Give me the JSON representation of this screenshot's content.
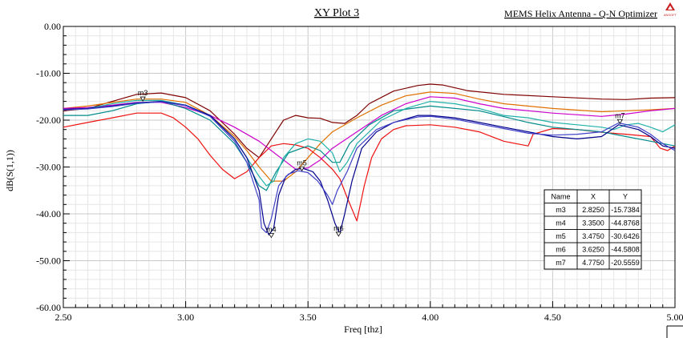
{
  "chart_data": {
    "type": "line",
    "title": "XY Plot 3",
    "subtitle": "MEMS Helix Antenna - Q-N Optimizer",
    "logo_text": "ANSOFT",
    "xlabel": "Freq [thz]",
    "ylabel": "dB(S(1,1))",
    "xlim": [
      2.5,
      5.0
    ],
    "ylim": [
      -60,
      0
    ],
    "x_ticks": [
      2.5,
      3.0,
      3.5,
      4.0,
      4.5,
      5.0
    ],
    "x_tick_labels": [
      "2.50",
      "3.00",
      "3.50",
      "4.00",
      "4.50",
      "5.00"
    ],
    "y_ticks": [
      0,
      -10,
      -20,
      -30,
      -40,
      -50,
      -60
    ],
    "y_tick_labels": [
      "0.00",
      "-10.00",
      "-20.00",
      "-30.00",
      "-40.00",
      "-50.00",
      "-60.00"
    ],
    "grid": true,
    "series": [
      {
        "color": "#7f0000",
        "points": [
          [
            2.5,
            -18
          ],
          [
            2.6,
            -17.5
          ],
          [
            2.7,
            -16
          ],
          [
            2.8,
            -14.5
          ],
          [
            2.9,
            -14.2
          ],
          [
            3.0,
            -15.2
          ],
          [
            3.1,
            -18
          ],
          [
            3.2,
            -23
          ],
          [
            3.25,
            -26
          ],
          [
            3.3,
            -28
          ],
          [
            3.35,
            -24
          ],
          [
            3.4,
            -20
          ],
          [
            3.45,
            -19
          ],
          [
            3.5,
            -19.5
          ],
          [
            3.55,
            -19.6
          ],
          [
            3.6,
            -20.5
          ],
          [
            3.65,
            -20.7
          ],
          [
            3.7,
            -19
          ],
          [
            3.75,
            -16.5
          ],
          [
            3.85,
            -13.8
          ],
          [
            3.95,
            -12.6
          ],
          [
            4.0,
            -12.3
          ],
          [
            4.05,
            -12.5
          ],
          [
            4.15,
            -13.7
          ],
          [
            4.3,
            -14.5
          ],
          [
            4.5,
            -15
          ],
          [
            4.7,
            -15.5
          ],
          [
            4.8,
            -15.6
          ],
          [
            4.9,
            -15.3
          ],
          [
            5.0,
            -15.2
          ]
        ]
      },
      {
        "color": "#e07000",
        "points": [
          [
            2.5,
            -17.5
          ],
          [
            2.6,
            -17
          ],
          [
            2.7,
            -16.2
          ],
          [
            2.8,
            -15.5
          ],
          [
            2.9,
            -15.5
          ],
          [
            3.0,
            -16.2
          ],
          [
            3.1,
            -19
          ],
          [
            3.2,
            -23.5
          ],
          [
            3.25,
            -26.5
          ],
          [
            3.3,
            -30
          ],
          [
            3.35,
            -33
          ],
          [
            3.4,
            -33
          ],
          [
            3.45,
            -31
          ],
          [
            3.5,
            -28
          ],
          [
            3.55,
            -25
          ],
          [
            3.6,
            -22.5
          ],
          [
            3.7,
            -19.5
          ],
          [
            3.8,
            -16.8
          ],
          [
            3.9,
            -14.8
          ],
          [
            4.0,
            -14
          ],
          [
            4.1,
            -14.3
          ],
          [
            4.2,
            -15.5
          ],
          [
            4.3,
            -16.5
          ],
          [
            4.5,
            -17.5
          ],
          [
            4.7,
            -18.2
          ],
          [
            4.8,
            -18
          ],
          [
            4.9,
            -17.8
          ],
          [
            5.0,
            -17.5
          ]
        ]
      },
      {
        "color": "#ee1111",
        "points": [
          [
            2.5,
            -21.5
          ],
          [
            2.6,
            -20.5
          ],
          [
            2.7,
            -19.5
          ],
          [
            2.8,
            -18.5
          ],
          [
            2.9,
            -18.5
          ],
          [
            2.95,
            -19.5
          ],
          [
            3.0,
            -21.5
          ],
          [
            3.05,
            -24
          ],
          [
            3.1,
            -27.5
          ],
          [
            3.15,
            -30.5
          ],
          [
            3.2,
            -32.5
          ],
          [
            3.25,
            -31
          ],
          [
            3.3,
            -28
          ],
          [
            3.35,
            -25.5
          ],
          [
            3.4,
            -25
          ],
          [
            3.45,
            -25.3
          ],
          [
            3.5,
            -26
          ],
          [
            3.55,
            -28
          ],
          [
            3.6,
            -30.5
          ],
          [
            3.63,
            -32.5
          ],
          [
            3.66,
            -36.5
          ],
          [
            3.7,
            -41.5
          ],
          [
            3.73,
            -34
          ],
          [
            3.76,
            -28
          ],
          [
            3.8,
            -24
          ],
          [
            3.85,
            -22
          ],
          [
            3.9,
            -21.2
          ],
          [
            4.0,
            -21
          ],
          [
            4.1,
            -21.5
          ],
          [
            4.2,
            -22.5
          ],
          [
            4.3,
            -24.5
          ],
          [
            4.35,
            -25
          ],
          [
            4.4,
            -25.5
          ],
          [
            4.42,
            -23
          ],
          [
            4.5,
            -21.8
          ],
          [
            4.6,
            -22
          ],
          [
            4.7,
            -22.6
          ],
          [
            4.8,
            -23
          ],
          [
            4.9,
            -23.5
          ],
          [
            4.94,
            -26
          ],
          [
            4.97,
            -26.5
          ],
          [
            5.0,
            -25.5
          ]
        ]
      },
      {
        "color": "#cc00cc",
        "points": [
          [
            2.5,
            -17.5
          ],
          [
            2.6,
            -17.3
          ],
          [
            2.7,
            -16.8
          ],
          [
            2.8,
            -16.2
          ],
          [
            2.9,
            -16.2
          ],
          [
            3.0,
            -17.3
          ],
          [
            3.1,
            -19
          ],
          [
            3.2,
            -21.5
          ],
          [
            3.3,
            -24.5
          ],
          [
            3.35,
            -26.5
          ],
          [
            3.4,
            -28.5
          ],
          [
            3.45,
            -30.5
          ],
          [
            3.5,
            -30.2
          ],
          [
            3.55,
            -28.5
          ],
          [
            3.6,
            -26
          ],
          [
            3.7,
            -22.5
          ],
          [
            3.8,
            -19
          ],
          [
            3.9,
            -16.5
          ],
          [
            4.0,
            -15
          ],
          [
            4.1,
            -15.3
          ],
          [
            4.2,
            -16.5
          ],
          [
            4.3,
            -17.5
          ],
          [
            4.5,
            -18.5
          ],
          [
            4.7,
            -19.2
          ],
          [
            4.8,
            -18.7
          ],
          [
            4.9,
            -18
          ],
          [
            5.0,
            -17.5
          ]
        ]
      },
      {
        "color": "#008b8b",
        "points": [
          [
            2.5,
            -19
          ],
          [
            2.6,
            -19
          ],
          [
            2.7,
            -18
          ],
          [
            2.8,
            -16.5
          ],
          [
            2.9,
            -16
          ],
          [
            3.0,
            -17.5
          ],
          [
            3.1,
            -20
          ],
          [
            3.2,
            -25
          ],
          [
            3.25,
            -29
          ],
          [
            3.3,
            -34
          ],
          [
            3.33,
            -35
          ],
          [
            3.37,
            -31
          ],
          [
            3.42,
            -27
          ],
          [
            3.5,
            -25.5
          ],
          [
            3.55,
            -26.5
          ],
          [
            3.6,
            -29
          ],
          [
            3.63,
            -29
          ],
          [
            3.67,
            -25
          ],
          [
            3.75,
            -21
          ],
          [
            3.85,
            -18
          ],
          [
            4.0,
            -17
          ],
          [
            4.2,
            -18
          ],
          [
            4.4,
            -20.5
          ],
          [
            4.5,
            -21.5
          ],
          [
            4.6,
            -22
          ],
          [
            4.7,
            -22.5
          ],
          [
            4.8,
            -23.5
          ],
          [
            4.9,
            -24.5
          ],
          [
            5.0,
            -25.5
          ]
        ]
      },
      {
        "color": "#20b2aa",
        "points": [
          [
            2.5,
            -17.8
          ],
          [
            2.6,
            -17.5
          ],
          [
            2.7,
            -16.5
          ],
          [
            2.8,
            -15.8
          ],
          [
            2.9,
            -15.8
          ],
          [
            3.0,
            -16.8
          ],
          [
            3.1,
            -19
          ],
          [
            3.2,
            -24
          ],
          [
            3.25,
            -28
          ],
          [
            3.3,
            -32
          ],
          [
            3.33,
            -34
          ],
          [
            3.36,
            -33
          ],
          [
            3.4,
            -28
          ],
          [
            3.45,
            -25
          ],
          [
            3.5,
            -24
          ],
          [
            3.55,
            -24.5
          ],
          [
            3.6,
            -27
          ],
          [
            3.63,
            -31
          ],
          [
            3.66,
            -29
          ],
          [
            3.7,
            -25
          ],
          [
            3.8,
            -20
          ],
          [
            3.9,
            -17.5
          ],
          [
            4.0,
            -16
          ],
          [
            4.1,
            -16.5
          ],
          [
            4.2,
            -17.5
          ],
          [
            4.3,
            -19
          ],
          [
            4.4,
            -19.5
          ],
          [
            4.5,
            -20.5
          ],
          [
            4.6,
            -21
          ],
          [
            4.7,
            -21.5
          ],
          [
            4.75,
            -22
          ],
          [
            4.8,
            -21
          ],
          [
            4.85,
            -20.7
          ],
          [
            4.9,
            -21.5
          ],
          [
            4.95,
            -22.5
          ],
          [
            5.0,
            -21
          ]
        ]
      },
      {
        "color": "#00008b",
        "points": [
          [
            2.5,
            -17.7
          ],
          [
            2.6,
            -17.5
          ],
          [
            2.7,
            -17
          ],
          [
            2.8,
            -16.3
          ],
          [
            2.9,
            -16
          ],
          [
            3.0,
            -16.8
          ],
          [
            3.1,
            -19
          ],
          [
            3.2,
            -24
          ],
          [
            3.25,
            -28
          ],
          [
            3.3,
            -35
          ],
          [
            3.32,
            -42
          ],
          [
            3.34,
            -44.5
          ],
          [
            3.36,
            -43
          ],
          [
            3.38,
            -36
          ],
          [
            3.41,
            -32
          ],
          [
            3.45,
            -30.5
          ],
          [
            3.48,
            -30.3
          ],
          [
            3.52,
            -31
          ],
          [
            3.55,
            -33
          ],
          [
            3.58,
            -37
          ],
          [
            3.61,
            -42
          ],
          [
            3.63,
            -44.2
          ],
          [
            3.65,
            -40
          ],
          [
            3.68,
            -33
          ],
          [
            3.72,
            -26
          ],
          [
            3.78,
            -22.5
          ],
          [
            3.85,
            -20.5
          ],
          [
            3.95,
            -19
          ],
          [
            4.0,
            -19
          ],
          [
            4.1,
            -19.5
          ],
          [
            4.2,
            -20.5
          ],
          [
            4.3,
            -21.5
          ],
          [
            4.4,
            -22.5
          ],
          [
            4.5,
            -23.5
          ],
          [
            4.6,
            -24
          ],
          [
            4.7,
            -23.5
          ],
          [
            4.77,
            -21
          ],
          [
            4.85,
            -22
          ],
          [
            4.9,
            -23.5
          ],
          [
            4.95,
            -25.5
          ],
          [
            5.0,
            -26
          ]
        ]
      },
      {
        "color": "#4040c8",
        "points": [
          [
            2.5,
            -17.8
          ],
          [
            2.6,
            -17.6
          ],
          [
            2.7,
            -17.1
          ],
          [
            2.8,
            -16.4
          ],
          [
            2.9,
            -16.1
          ],
          [
            3.0,
            -16.9
          ],
          [
            3.1,
            -19.2
          ],
          [
            3.2,
            -24.5
          ],
          [
            3.25,
            -29
          ],
          [
            3.3,
            -37
          ],
          [
            3.31,
            -43
          ],
          [
            3.33,
            -44
          ],
          [
            3.35,
            -41
          ],
          [
            3.38,
            -34
          ],
          [
            3.42,
            -31.5
          ],
          [
            3.46,
            -30.8
          ],
          [
            3.5,
            -31.2
          ],
          [
            3.54,
            -33
          ],
          [
            3.58,
            -36
          ],
          [
            3.6,
            -38
          ],
          [
            3.62,
            -35
          ],
          [
            3.66,
            -31
          ],
          [
            3.7,
            -26
          ],
          [
            3.78,
            -22
          ],
          [
            3.85,
            -20.5
          ],
          [
            3.95,
            -19.3
          ],
          [
            4.0,
            -19.2
          ],
          [
            4.1,
            -19.8
          ],
          [
            4.2,
            -20.8
          ],
          [
            4.3,
            -21.8
          ],
          [
            4.4,
            -22.8
          ],
          [
            4.5,
            -23.2
          ],
          [
            4.6,
            -23
          ],
          [
            4.7,
            -22.5
          ],
          [
            4.77,
            -20.6
          ],
          [
            4.85,
            -21.5
          ],
          [
            4.9,
            -23
          ],
          [
            4.95,
            -25
          ],
          [
            5.0,
            -26.5
          ]
        ]
      }
    ],
    "markers": [
      {
        "name": "m3",
        "x": 2.825,
        "y": -15.7384
      },
      {
        "name": "m4",
        "x": 3.35,
        "y": -44.8768
      },
      {
        "name": "m5",
        "x": 3.475,
        "y": -30.6426
      },
      {
        "name": "m6",
        "x": 3.625,
        "y": -44.5808
      },
      {
        "name": "m7",
        "x": 4.775,
        "y": -20.5559
      }
    ],
    "marker_table": {
      "headers": [
        "Name",
        "X",
        "Y"
      ],
      "rows": [
        [
          "m3",
          "2.8250",
          "-15.7384"
        ],
        [
          "m4",
          "3.3500",
          "-44.8768"
        ],
        [
          "m5",
          "3.4750",
          "-30.6426"
        ],
        [
          "m6",
          "3.6250",
          "-44.5808"
        ],
        [
          "m7",
          "4.7750",
          "-20.5559"
        ]
      ]
    }
  }
}
